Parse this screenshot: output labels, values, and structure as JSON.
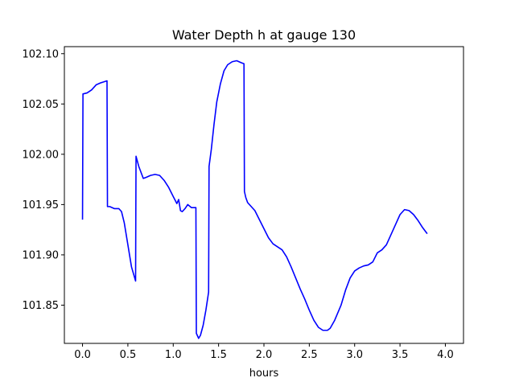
{
  "chart_data": {
    "type": "line",
    "title": "Water Depth h at gauge 130",
    "xlabel": "hours",
    "ylabel": "",
    "xlim": [
      -0.2,
      4.2
    ],
    "ylim": [
      101.812,
      102.107
    ],
    "grid": false,
    "legend": "none",
    "x_ticks": [
      {
        "value": 0.0,
        "label": "0.0"
      },
      {
        "value": 0.5,
        "label": "0.5"
      },
      {
        "value": 1.0,
        "label": "1.0"
      },
      {
        "value": 1.5,
        "label": "1.5"
      },
      {
        "value": 2.0,
        "label": "2.0"
      },
      {
        "value": 2.5,
        "label": "2.5"
      },
      {
        "value": 3.0,
        "label": "3.0"
      },
      {
        "value": 3.5,
        "label": "3.5"
      },
      {
        "value": 4.0,
        "label": "4.0"
      }
    ],
    "y_ticks": [
      {
        "value": 101.85,
        "label": "101.85"
      },
      {
        "value": 101.9,
        "label": "101.90"
      },
      {
        "value": 101.95,
        "label": "101.95"
      },
      {
        "value": 102.0,
        "label": "102.00"
      },
      {
        "value": 102.05,
        "label": "102.05"
      },
      {
        "value": 102.1,
        "label": "102.10"
      }
    ],
    "series": [
      {
        "color": "#0000ff",
        "points": [
          [
            0.0,
            101.935
          ],
          [
            0.005,
            102.06
          ],
          [
            0.05,
            102.061
          ],
          [
            0.1,
            102.064
          ],
          [
            0.15,
            102.069
          ],
          [
            0.2,
            102.071
          ],
          [
            0.27,
            102.073
          ],
          [
            0.275,
            101.948
          ],
          [
            0.3,
            101.948
          ],
          [
            0.35,
            101.946
          ],
          [
            0.4,
            101.946
          ],
          [
            0.43,
            101.943
          ],
          [
            0.46,
            101.932
          ],
          [
            0.5,
            101.91
          ],
          [
            0.54,
            101.888
          ],
          [
            0.585,
            101.874
          ],
          [
            0.59,
            101.998
          ],
          [
            0.62,
            101.988
          ],
          [
            0.67,
            101.976
          ],
          [
            0.7,
            101.977
          ],
          [
            0.75,
            101.979
          ],
          [
            0.8,
            101.98
          ],
          [
            0.85,
            101.979
          ],
          [
            0.9,
            101.974
          ],
          [
            0.95,
            101.967
          ],
          [
            1.0,
            101.958
          ],
          [
            1.04,
            101.951
          ],
          [
            1.06,
            101.955
          ],
          [
            1.08,
            101.944
          ],
          [
            1.1,
            101.943
          ],
          [
            1.13,
            101.946
          ],
          [
            1.16,
            101.95
          ],
          [
            1.2,
            101.947
          ],
          [
            1.25,
            101.947
          ],
          [
            1.255,
            101.822
          ],
          [
            1.28,
            101.817
          ],
          [
            1.3,
            101.82
          ],
          [
            1.33,
            101.83
          ],
          [
            1.36,
            101.845
          ],
          [
            1.39,
            101.863
          ],
          [
            1.395,
            101.988
          ],
          [
            1.42,
            102.005
          ],
          [
            1.45,
            102.03
          ],
          [
            1.48,
            102.052
          ],
          [
            1.52,
            102.07
          ],
          [
            1.56,
            102.083
          ],
          [
            1.6,
            102.089
          ],
          [
            1.65,
            102.092
          ],
          [
            1.7,
            102.093
          ],
          [
            1.75,
            102.091
          ],
          [
            1.78,
            102.09
          ],
          [
            1.785,
            101.963
          ],
          [
            1.8,
            101.957
          ],
          [
            1.82,
            101.952
          ],
          [
            1.85,
            101.949
          ],
          [
            1.9,
            101.944
          ],
          [
            1.95,
            101.935
          ],
          [
            2.0,
            101.926
          ],
          [
            2.05,
            101.917
          ],
          [
            2.1,
            101.911
          ],
          [
            2.15,
            101.908
          ],
          [
            2.2,
            101.905
          ],
          [
            2.25,
            101.898
          ],
          [
            2.3,
            101.888
          ],
          [
            2.35,
            101.877
          ],
          [
            2.4,
            101.866
          ],
          [
            2.45,
            101.856
          ],
          [
            2.5,
            101.845
          ],
          [
            2.55,
            101.835
          ],
          [
            2.6,
            101.828
          ],
          [
            2.65,
            101.825
          ],
          [
            2.7,
            101.825
          ],
          [
            2.73,
            101.827
          ],
          [
            2.78,
            101.835
          ],
          [
            2.85,
            101.85
          ],
          [
            2.9,
            101.865
          ],
          [
            2.95,
            101.877
          ],
          [
            3.0,
            101.884
          ],
          [
            3.05,
            101.887
          ],
          [
            3.1,
            101.889
          ],
          [
            3.15,
            101.89
          ],
          [
            3.2,
            101.893
          ],
          [
            3.25,
            101.902
          ],
          [
            3.3,
            101.905
          ],
          [
            3.35,
            101.91
          ],
          [
            3.4,
            101.92
          ],
          [
            3.45,
            101.93
          ],
          [
            3.5,
            101.94
          ],
          [
            3.55,
            101.945
          ],
          [
            3.6,
            101.944
          ],
          [
            3.65,
            101.94
          ],
          [
            3.7,
            101.934
          ],
          [
            3.75,
            101.927
          ],
          [
            3.8,
            101.921
          ]
        ]
      }
    ]
  }
}
